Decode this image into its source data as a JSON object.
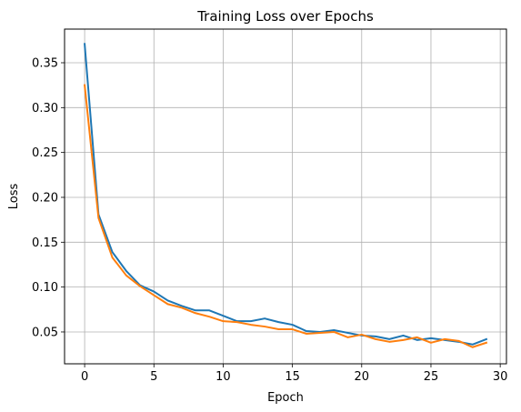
{
  "chart_data": {
    "type": "line",
    "title": "Training Loss over Epochs",
    "xlabel": "Epoch",
    "ylabel": "Loss",
    "xlim": [
      -1.45,
      30.45
    ],
    "ylim": [
      0.0145,
      0.3875
    ],
    "xticks": [
      0,
      5,
      10,
      15,
      20,
      25,
      30
    ],
    "yticks": [
      0.05,
      0.1,
      0.15,
      0.2,
      0.25,
      0.3,
      0.35
    ],
    "xtick_labels": [
      "0",
      "5",
      "10",
      "15",
      "20",
      "25",
      "30"
    ],
    "ytick_labels": [
      "0.05",
      "0.10",
      "0.15",
      "0.20",
      "0.25",
      "0.30",
      "0.35"
    ],
    "grid": true,
    "x": [
      0,
      1,
      2,
      3,
      4,
      5,
      6,
      7,
      8,
      9,
      10,
      11,
      12,
      13,
      14,
      15,
      16,
      17,
      18,
      19,
      20,
      21,
      22,
      23,
      24,
      25,
      26,
      27,
      28,
      29
    ],
    "series": [
      {
        "color": "#1f77b4",
        "values": [
          0.371,
          0.181,
          0.139,
          0.118,
          0.102,
          0.095,
          0.085,
          0.079,
          0.074,
          0.074,
          0.068,
          0.062,
          0.062,
          0.065,
          0.061,
          0.058,
          0.051,
          0.05,
          0.052,
          0.049,
          0.046,
          0.045,
          0.042,
          0.046,
          0.041,
          0.043,
          0.041,
          0.039,
          0.036,
          0.042
        ]
      },
      {
        "color": "#ff7f0e",
        "values": [
          0.325,
          0.177,
          0.133,
          0.113,
          0.101,
          0.091,
          0.081,
          0.077,
          0.071,
          0.067,
          0.062,
          0.061,
          0.058,
          0.056,
          0.053,
          0.053,
          0.048,
          0.049,
          0.05,
          0.044,
          0.047,
          0.042,
          0.039,
          0.041,
          0.044,
          0.038,
          0.042,
          0.04,
          0.033,
          0.038
        ]
      }
    ]
  }
}
